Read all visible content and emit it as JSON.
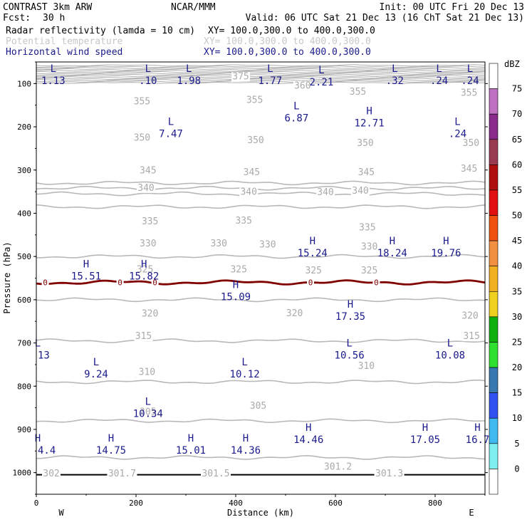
{
  "header": {
    "model": "CONTRAST  3km ARW",
    "org": "NCAR/MMM",
    "init": "Init: 00 UTC Fri 20 Dec 13",
    "fcst_label": "Fcst:",
    "fcst_value": "30 h",
    "valid": "Valid: 06 UTC Sat 21 Dec 13 (16 ChT Sat 21 Dec 13)",
    "fields": [
      {
        "name": "Radar reflectivity (lamda = 10 cm)",
        "xy": "XY= 100.0,300.0 to 400.0,300.0",
        "color": "#000000"
      },
      {
        "name": "Potential temperature",
        "xy": "XY= 100.0,300.0 to 400.0,300.0",
        "color": "#c8c8c8"
      },
      {
        "name": "Horizontal wind speed",
        "xy": "XY= 100.0,300.0 to 400.0,300.0",
        "color": "#1a1a8c"
      }
    ]
  },
  "chart_data": {
    "type": "contour-cross-section",
    "xlabel": "Distance (km)",
    "ylabel": "Pressure (hPa)",
    "xlim": [
      0,
      900
    ],
    "ylim": [
      1050,
      50
    ],
    "x_ticks": [
      0,
      200,
      400,
      600,
      800
    ],
    "y_ticks": [
      100,
      200,
      300,
      400,
      500,
      600,
      700,
      800,
      900,
      1000
    ],
    "x_end_labels": {
      "left": "W",
      "right": "E"
    },
    "colorbar": {
      "unit": "dBZ",
      "levels": [
        "0",
        "5",
        "10",
        "15",
        "20",
        "25",
        "30",
        "35",
        "40",
        "45",
        "50",
        "55",
        "60",
        "65",
        "70",
        "75"
      ],
      "colors": [
        "#ffffff",
        "#7ff0f0",
        "#40b8f0",
        "#3050f0",
        "#3878b0",
        "#30e030",
        "#10b010",
        "#f0d020",
        "#f0b020",
        "#f09040",
        "#f05010",
        "#e01010",
        "#b01010",
        "#9a3a50",
        "#8a2a8a",
        "#c070c0",
        "#ffffff"
      ]
    },
    "theta_labels": [
      {
        "x": 212,
        "p": 148,
        "v": "355"
      },
      {
        "x": 438,
        "p": 145,
        "v": "355"
      },
      {
        "x": 645,
        "p": 126,
        "v": "355"
      },
      {
        "x": 868,
        "p": 128,
        "v": "355"
      },
      {
        "x": 410,
        "p": 90,
        "v": "375"
      },
      {
        "x": 534,
        "p": 112,
        "v": "360"
      },
      {
        "x": 212,
        "p": 232,
        "v": "350"
      },
      {
        "x": 440,
        "p": 238,
        "v": "350"
      },
      {
        "x": 660,
        "p": 244,
        "v": "350"
      },
      {
        "x": 872,
        "p": 244,
        "v": "350"
      },
      {
        "x": 224,
        "p": 308,
        "v": "345"
      },
      {
        "x": 432,
        "p": 312,
        "v": "345"
      },
      {
        "x": 662,
        "p": 312,
        "v": "345"
      },
      {
        "x": 868,
        "p": 304,
        "v": "345"
      },
      {
        "x": 220,
        "p": 348,
        "v": "340"
      },
      {
        "x": 426,
        "p": 357,
        "v": "340"
      },
      {
        "x": 580,
        "p": 358,
        "v": "340"
      },
      {
        "x": 650,
        "p": 355,
        "v": "340"
      },
      {
        "x": 228,
        "p": 426,
        "v": "335"
      },
      {
        "x": 416,
        "p": 424,
        "v": "335"
      },
      {
        "x": 664,
        "p": 440,
        "v": "335"
      },
      {
        "x": 224,
        "p": 477,
        "v": "330"
      },
      {
        "x": 366,
        "p": 477,
        "v": "330"
      },
      {
        "x": 464,
        "p": 479,
        "v": "330"
      },
      {
        "x": 668,
        "p": 484,
        "v": "330"
      },
      {
        "x": 218,
        "p": 537,
        "v": "325"
      },
      {
        "x": 406,
        "p": 537,
        "v": "325"
      },
      {
        "x": 556,
        "p": 539,
        "v": "325"
      },
      {
        "x": 668,
        "p": 539,
        "v": "325"
      },
      {
        "x": 228,
        "p": 639,
        "v": "320"
      },
      {
        "x": 518,
        "p": 638,
        "v": "320"
      },
      {
        "x": 870,
        "p": 644,
        "v": "320"
      },
      {
        "x": 215,
        "p": 691,
        "v": "315"
      },
      {
        "x": 873,
        "p": 691,
        "v": "315"
      },
      {
        "x": 222,
        "p": 774,
        "v": "310"
      },
      {
        "x": 662,
        "p": 760,
        "v": "310"
      },
      {
        "x": 224,
        "p": 866,
        "v": "305"
      },
      {
        "x": 445,
        "p": 852,
        "v": "305"
      },
      {
        "x": 30,
        "p": 1009,
        "v": "302"
      },
      {
        "x": 172,
        "p": 1009,
        "v": "301.7"
      },
      {
        "x": 360,
        "p": 1009,
        "v": "301.5"
      },
      {
        "x": 605,
        "p": 993,
        "v": "301.2"
      },
      {
        "x": 708,
        "p": 1009,
        "v": "301.3"
      }
    ],
    "theta_lines": [
      330,
      342,
      355,
      385,
      500,
      600,
      695,
      790,
      880,
      965
    ],
    "surface_line_p": 1005,
    "reflectivity_zero_contour": {
      "p": 560,
      "labels": [
        {
          "x": 18,
          "v": "0"
        },
        {
          "x": 168,
          "v": "0"
        },
        {
          "x": 238,
          "v": "0"
        },
        {
          "x": 550,
          "v": "0"
        },
        {
          "x": 682,
          "v": "0"
        }
      ]
    },
    "wind_extrema": [
      {
        "type": "L",
        "x": 34,
        "p": 80,
        "v": "1.13"
      },
      {
        "type": "L",
        "x": 224,
        "p": 80,
        "v": ".10"
      },
      {
        "type": "L",
        "x": 306,
        "p": 80,
        "v": "1.98"
      },
      {
        "type": "L",
        "x": 469,
        "p": 80,
        "v": "1.77"
      },
      {
        "type": "L",
        "x": 572,
        "p": 83,
        "v": "2.21"
      },
      {
        "type": "L",
        "x": 719,
        "p": 80,
        "v": ".32"
      },
      {
        "type": "L",
        "x": 808,
        "p": 80,
        "v": ".24"
      },
      {
        "type": "L",
        "x": 870,
        "p": 80,
        "v": ".24"
      },
      {
        "type": "L",
        "x": 522,
        "p": 166,
        "v": "6.87"
      },
      {
        "type": "H",
        "x": 668,
        "p": 178,
        "v": "12.71"
      },
      {
        "type": "L",
        "x": 270,
        "p": 202,
        "v": "7.47"
      },
      {
        "type": "L",
        "x": 845,
        "p": 202,
        "v": ".24"
      },
      {
        "type": "H",
        "x": 554,
        "p": 478,
        "v": "15.24"
      },
      {
        "type": "H",
        "x": 714,
        "p": 478,
        "v": "18.24"
      },
      {
        "type": "H",
        "x": 822,
        "p": 478,
        "v": "19.76"
      },
      {
        "type": "H",
        "x": 100,
        "p": 532,
        "v": "15.51"
      },
      {
        "type": "H",
        "x": 216,
        "p": 532,
        "v": "15.82"
      },
      {
        "type": "H",
        "x": 400,
        "p": 580,
        "v": "15.09"
      },
      {
        "type": "H",
        "x": 630,
        "p": 625,
        "v": "17.35"
      },
      {
        "type": "L",
        "x": 0,
        "p": 715,
        "v": "13"
      },
      {
        "type": "L",
        "x": 628,
        "p": 715,
        "v": "10.56"
      },
      {
        "type": "L",
        "x": 830,
        "p": 715,
        "v": "10.08"
      },
      {
        "type": "L",
        "x": 120,
        "p": 758,
        "v": "9.24"
      },
      {
        "type": "L",
        "x": 418,
        "p": 758,
        "v": "10.12"
      },
      {
        "type": "L",
        "x": 224,
        "p": 850,
        "v": "10.34"
      },
      {
        "type": "H",
        "x": 2,
        "p": 935,
        "v": "4.4"
      },
      {
        "type": "H",
        "x": 150,
        "p": 935,
        "v": "14.75"
      },
      {
        "type": "H",
        "x": 310,
        "p": 935,
        "v": "15.01"
      },
      {
        "type": "H",
        "x": 420,
        "p": 935,
        "v": "14.36"
      },
      {
        "type": "H",
        "x": 546,
        "p": 910,
        "v": "14.46"
      },
      {
        "type": "H",
        "x": 780,
        "p": 910,
        "v": "17.05"
      },
      {
        "type": "H",
        "x": 885,
        "p": 910,
        "v": "16.7"
      }
    ]
  }
}
